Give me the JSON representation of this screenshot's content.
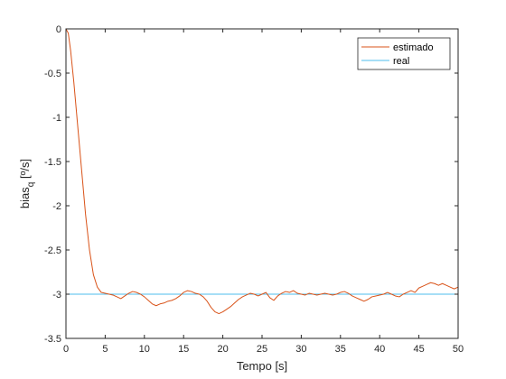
{
  "chart_data": {
    "type": "line",
    "title": "",
    "xlabel": "Tempo [s]",
    "ylabel": {
      "main": "bias",
      "subscript": "q",
      "suffix": " [º/s]"
    },
    "xlim": [
      0,
      50
    ],
    "ylim": [
      -3.5,
      0
    ],
    "xticks": [
      0,
      5,
      10,
      15,
      20,
      25,
      30,
      35,
      40,
      45,
      50
    ],
    "yticks": [
      0,
      -0.5,
      -1,
      -1.5,
      -2,
      -2.5,
      -3,
      -3.5
    ],
    "xtick_labels": [
      "0",
      "5",
      "10",
      "15",
      "20",
      "25",
      "30",
      "35",
      "40",
      "45",
      "50"
    ],
    "ytick_labels": [
      "0",
      "-0.5",
      "-1",
      "-1.5",
      "-2",
      "-2.5",
      "-3",
      "-3.5"
    ],
    "grid": false,
    "legend_position": "top-right",
    "series": [
      {
        "name": "estimado",
        "color": "#D95319",
        "x": [
          0,
          0.3,
          0.6,
          1.0,
          1.5,
          2.0,
          2.5,
          3.0,
          3.5,
          4.0,
          4.5,
          5.0,
          5.5,
          6.0,
          6.5,
          7.0,
          7.5,
          8.0,
          8.5,
          9.0,
          9.5,
          10.0,
          10.5,
          11.0,
          11.5,
          12.0,
          12.5,
          13.0,
          13.5,
          14.0,
          14.5,
          15.0,
          15.5,
          16.0,
          16.5,
          17.0,
          17.5,
          18.0,
          18.5,
          19.0,
          19.5,
          20.0,
          20.5,
          21.0,
          21.5,
          22.0,
          22.5,
          23.0,
          23.5,
          24.0,
          24.5,
          25.0,
          25.5,
          26.0,
          26.5,
          27.0,
          27.5,
          28.0,
          28.5,
          29.0,
          29.5,
          30.0,
          30.5,
          31.0,
          31.5,
          32.0,
          32.5,
          33.0,
          33.5,
          34.0,
          34.5,
          35.0,
          35.5,
          36.0,
          36.5,
          37.0,
          37.5,
          38.0,
          38.5,
          39.0,
          39.5,
          40.0,
          40.5,
          41.0,
          41.5,
          42.0,
          42.5,
          43.0,
          43.5,
          44.0,
          44.5,
          45.0,
          45.5,
          46.0,
          46.5,
          47.0,
          47.5,
          48.0,
          48.5,
          49.0,
          49.5,
          50.0
        ],
        "values": [
          0,
          -0.05,
          -0.25,
          -0.6,
          -1.1,
          -1.6,
          -2.1,
          -2.5,
          -2.78,
          -2.92,
          -2.98,
          -2.99,
          -3.0,
          -3.01,
          -3.03,
          -3.05,
          -3.02,
          -2.99,
          -2.97,
          -2.98,
          -3.0,
          -3.03,
          -3.07,
          -3.11,
          -3.13,
          -3.11,
          -3.1,
          -3.08,
          -3.07,
          -3.05,
          -3.02,
          -2.98,
          -2.96,
          -2.97,
          -2.99,
          -3.0,
          -3.03,
          -3.08,
          -3.15,
          -3.2,
          -3.22,
          -3.2,
          -3.17,
          -3.14,
          -3.1,
          -3.06,
          -3.03,
          -3.01,
          -2.99,
          -3.0,
          -3.02,
          -3.0,
          -2.98,
          -3.04,
          -3.07,
          -3.02,
          -2.99,
          -2.97,
          -2.98,
          -2.96,
          -2.99,
          -3.0,
          -3.01,
          -2.99,
          -3.0,
          -3.01,
          -3.0,
          -2.99,
          -3.0,
          -3.01,
          -3.0,
          -2.98,
          -2.97,
          -2.99,
          -3.02,
          -3.04,
          -3.06,
          -3.08,
          -3.06,
          -3.03,
          -3.02,
          -3.01,
          -3.0,
          -2.98,
          -3.0,
          -3.02,
          -3.03,
          -3.0,
          -2.98,
          -2.96,
          -2.98,
          -2.93,
          -2.91,
          -2.89,
          -2.87,
          -2.88,
          -2.9,
          -2.88,
          -2.9,
          -2.92,
          -2.94,
          -2.92
        ]
      },
      {
        "name": "real",
        "color": "#4DBEEE",
        "x": [
          0,
          50
        ],
        "values": [
          -3,
          -3
        ]
      }
    ]
  }
}
